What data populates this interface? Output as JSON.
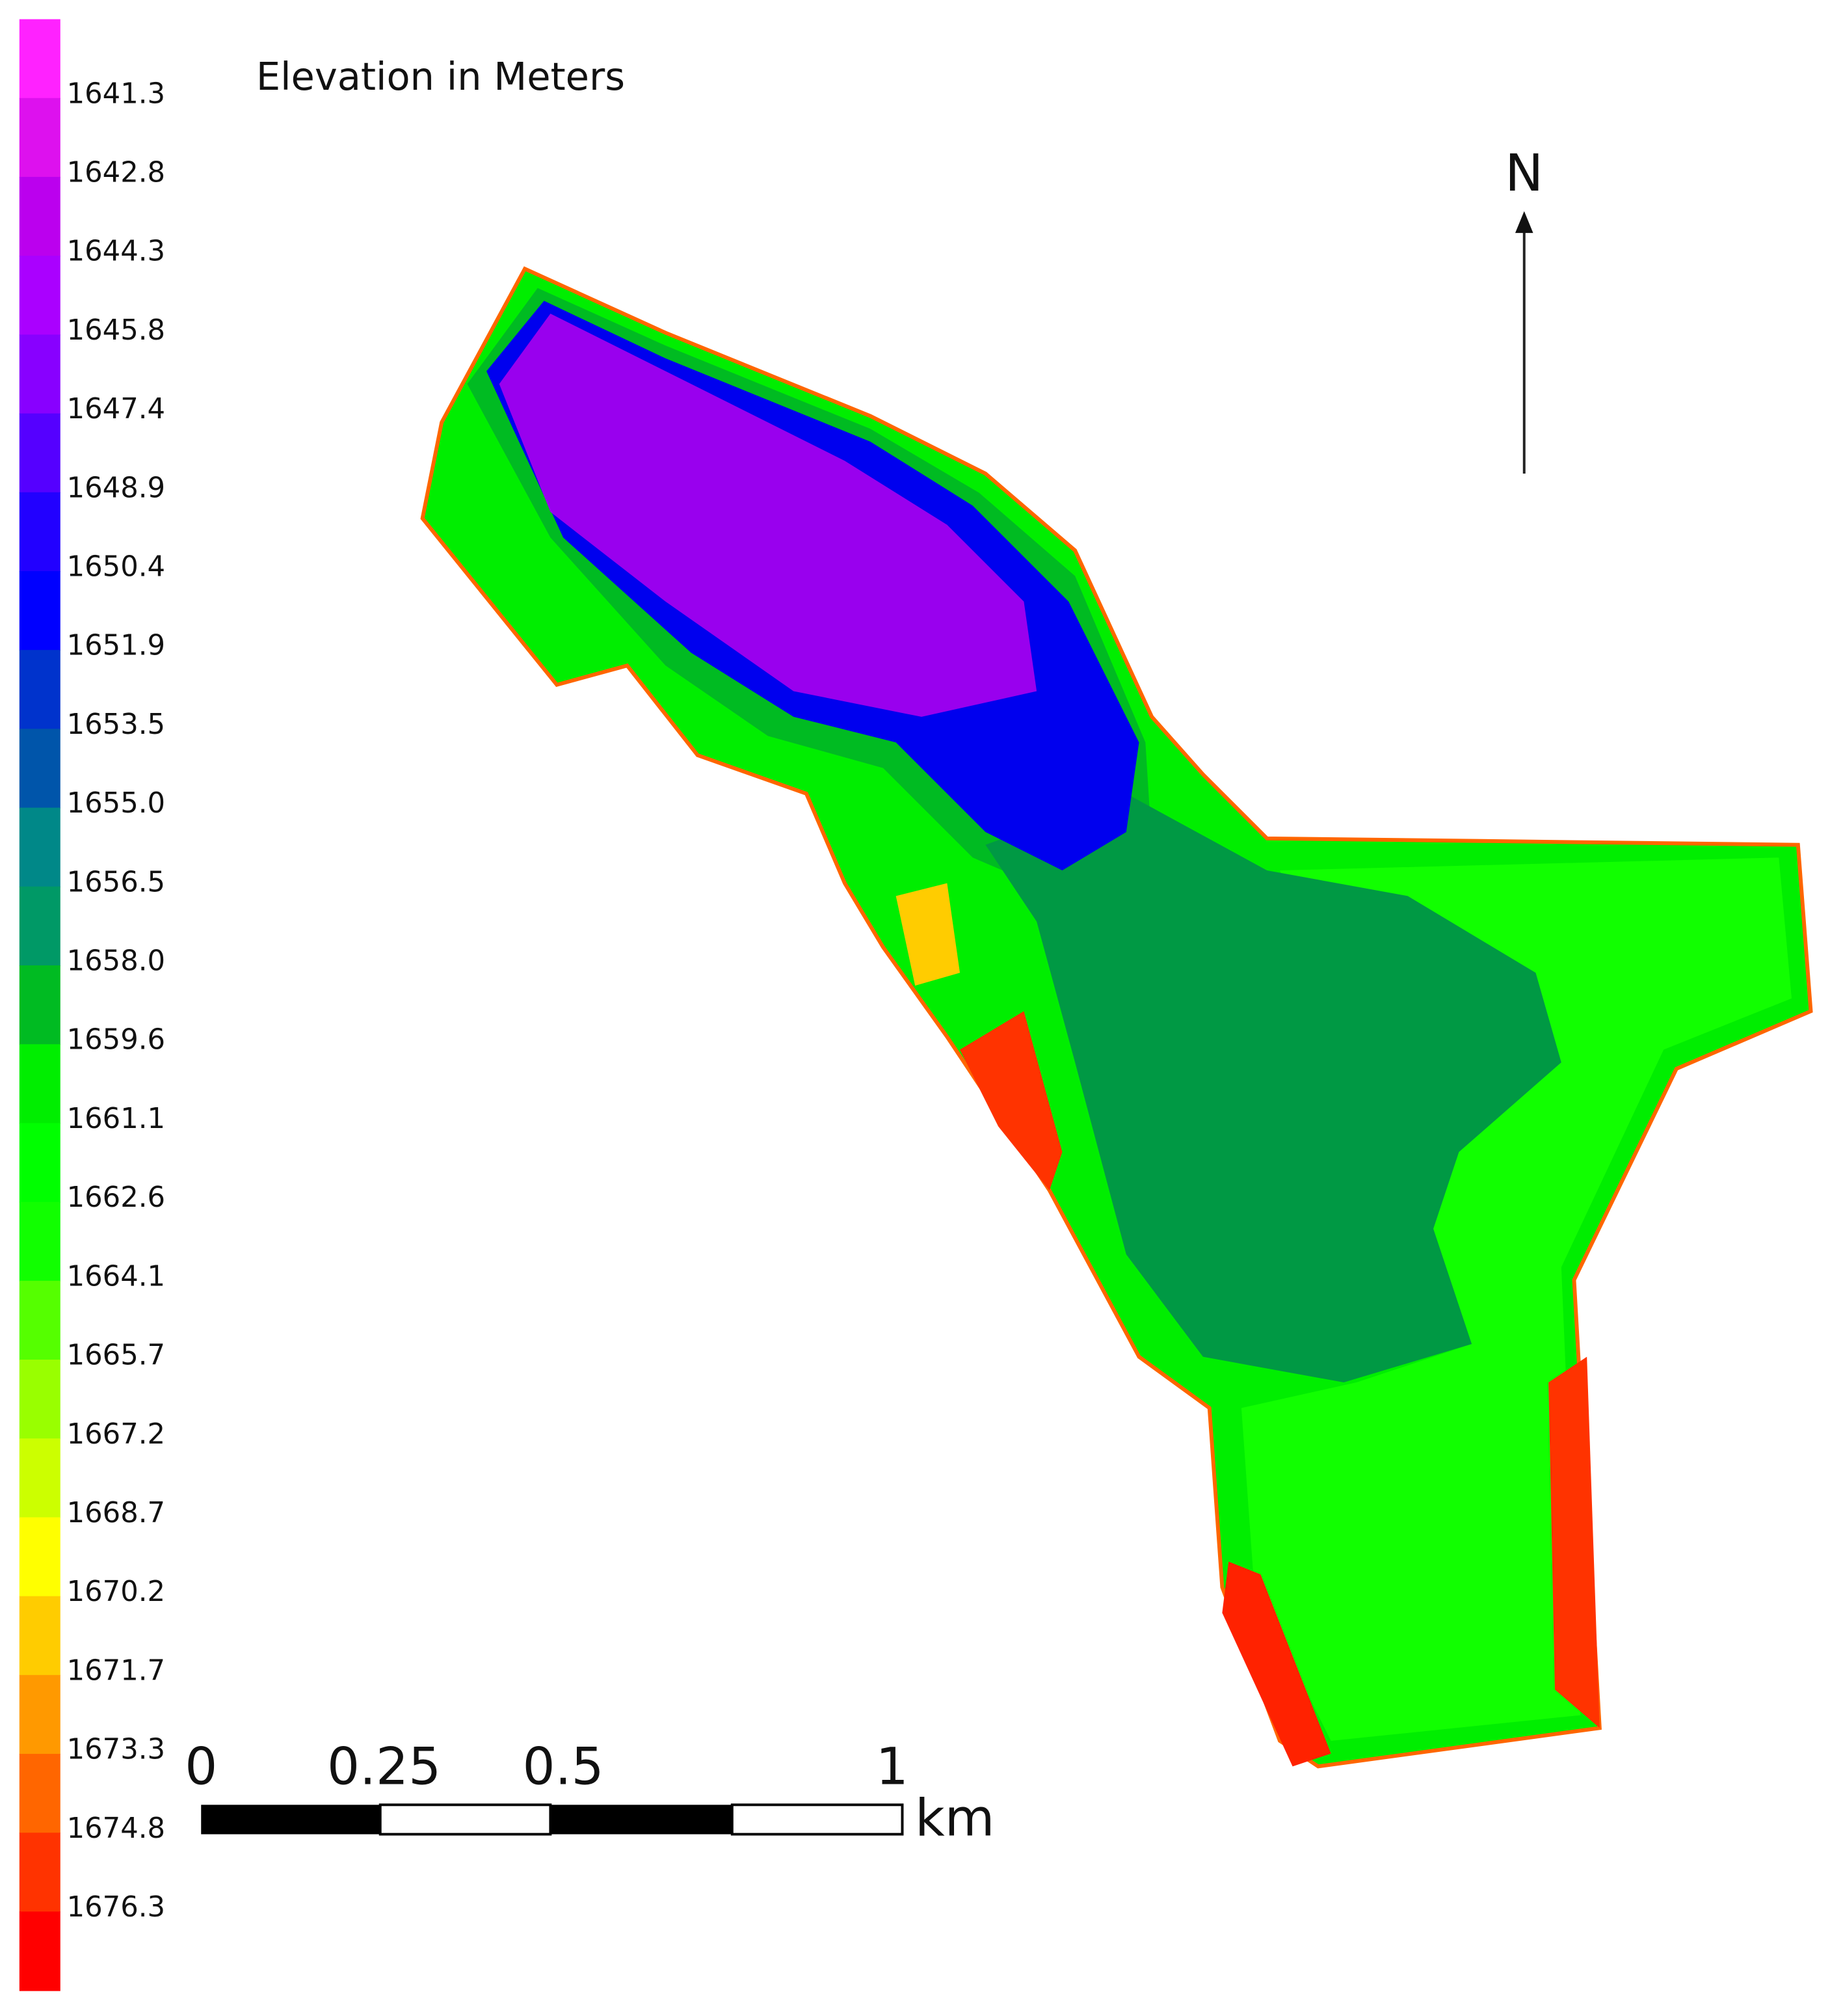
{
  "legend": {
    "title": "Elevation in Meters",
    "labels": [
      "1641.3",
      "1642.8",
      "1644.3",
      "1645.8",
      "1647.4",
      "1648.9",
      "1650.4",
      "1651.9",
      "1653.5",
      "1655.0",
      "1656.5",
      "1658.0",
      "1659.6",
      "1661.1",
      "1662.6",
      "1664.1",
      "1665.7",
      "1667.2",
      "1668.7",
      "1670.2",
      "1671.7",
      "1673.3",
      "1674.8",
      "1676.3"
    ],
    "colors": [
      "#ff22ff",
      "#dd11ee",
      "#bb00ee",
      "#aa00ff",
      "#8800ff",
      "#5500ff",
      "#2200ff",
      "#0000ff",
      "#0033cc",
      "#0055aa",
      "#008888",
      "#009966",
      "#00bb22",
      "#00ee00",
      "#00ff00",
      "#11ff00",
      "#55ff00",
      "#99ff00",
      "#ccff00",
      "#ffff00",
      "#ffcc00",
      "#ff9900",
      "#ff6600",
      "#ff3300",
      "#ff0000"
    ]
  },
  "north_arrow": {
    "label": "N"
  },
  "scale_bar": {
    "labels": [
      "0",
      "0.25",
      "0.5",
      "1"
    ],
    "unit": "km"
  }
}
